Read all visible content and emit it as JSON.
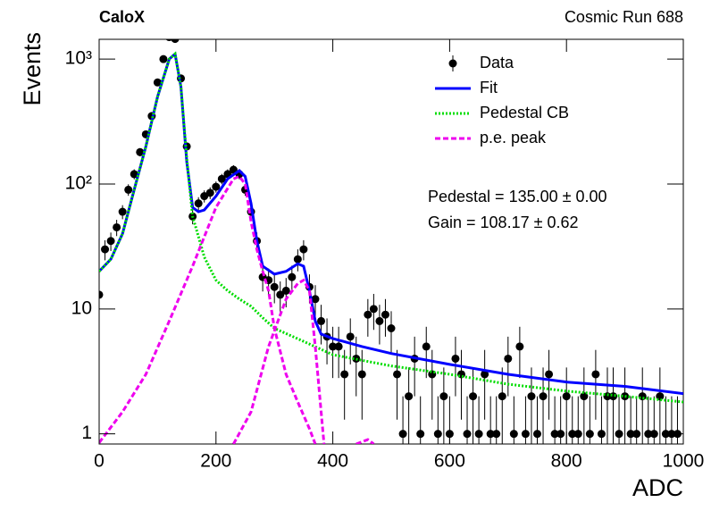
{
  "chart_data": {
    "type": "errorbar",
    "title": "CaloX",
    "subtitle": "Cosmic Run 688",
    "x_label": "ADC",
    "y_label": "Events",
    "annotations": [
      "Pedestal = 135.00 ± 0.00",
      "Gain = 108.17 ± 0.62"
    ],
    "log_y": true,
    "xlim": [
      0,
      1000
    ],
    "ylim": [
      0.83,
      1440
    ],
    "xticks": [
      0,
      200,
      400,
      600,
      800,
      1000
    ],
    "yticks": [
      1,
      10,
      {
        "value": 100,
        "label": "10²"
      },
      {
        "value": 1000,
        "label": "10³"
      }
    ],
    "legend": "upper right",
    "series": [
      {
        "name": "Data",
        "type": "errorbar",
        "color": "#000000",
        "x": [
          0,
          10,
          20,
          30,
          40,
          50,
          60,
          70,
          80,
          90,
          100,
          110,
          120,
          130,
          140,
          150,
          160,
          170,
          180,
          190,
          200,
          210,
          220,
          230,
          240,
          250,
          260,
          270,
          280,
          290,
          300,
          310,
          320,
          330,
          340,
          350,
          360,
          370,
          380,
          390,
          400,
          410,
          420,
          430,
          440,
          450,
          460,
          470,
          480,
          490,
          500,
          510,
          520,
          530,
          540,
          550,
          560,
          570,
          580,
          590,
          600,
          610,
          620,
          630,
          640,
          650,
          660,
          670,
          680,
          690,
          700,
          710,
          720,
          730,
          740,
          750,
          760,
          770,
          780,
          790,
          800,
          810,
          820,
          830,
          840,
          850,
          860,
          870,
          880,
          890,
          900,
          910,
          920,
          930,
          940,
          950,
          960,
          970,
          980,
          990
        ],
        "values": [
          13,
          30,
          35,
          45,
          60,
          90,
          120,
          180,
          250,
          350,
          650,
          1000,
          1500,
          1450,
          700,
          200,
          55,
          70,
          80,
          85,
          95,
          110,
          120,
          130,
          120,
          90,
          60,
          35,
          18,
          17,
          15,
          13,
          14,
          18,
          25,
          30,
          15,
          12,
          8,
          6,
          5,
          5,
          3,
          6,
          4,
          3,
          9,
          10,
          8,
          9,
          7,
          3,
          1,
          2,
          4,
          1,
          5,
          3,
          1,
          2,
          1,
          4,
          3,
          1,
          2,
          1,
          3,
          1,
          1,
          2,
          4,
          1,
          5,
          1,
          2,
          1,
          2,
          3,
          1,
          1,
          2,
          1,
          1,
          2,
          1,
          3,
          1,
          2,
          2,
          1,
          2,
          1,
          1,
          2,
          1,
          1,
          2,
          1,
          1,
          1
        ],
        "errors": [
          3.6,
          5.5,
          5.9,
          6.7,
          7.7,
          9.5,
          11.0,
          13.4,
          15.8,
          18.7,
          25.5,
          31.6,
          38.7,
          38.1,
          26.5,
          14.1,
          7.4,
          8.4,
          8.9,
          9.2,
          9.7,
          10.5,
          11.0,
          11.4,
          11.0,
          9.5,
          7.7,
          5.9,
          4.2,
          4.1,
          3.9,
          3.6,
          3.7,
          4.2,
          5.0,
          5.5,
          3.9,
          3.5,
          2.8,
          2.4,
          2.2,
          2.2,
          1.7,
          2.4,
          2.0,
          1.7,
          3.0,
          3.2,
          2.8,
          3.0,
          2.6,
          1.7,
          1.0,
          1.4,
          2.0,
          1.0,
          2.2,
          1.7,
          1.0,
          1.4,
          1.0,
          2.0,
          1.7,
          1.0,
          1.4,
          1.0,
          1.7,
          1.0,
          1.0,
          1.4,
          2.0,
          1.0,
          2.2,
          1.0,
          1.4,
          1.0,
          1.4,
          1.7,
          1.0,
          1.0,
          1.4,
          1.0,
          1.0,
          1.4,
          1.0,
          1.7,
          1.0,
          1.4,
          1.4,
          1.0,
          1.4,
          1.0,
          1.0,
          1.4,
          1.0,
          1.0,
          1.4,
          1.0,
          1.0,
          1.0
        ]
      },
      {
        "name": "Fit",
        "type": "line",
        "style": "solid",
        "color": "#0000ff",
        "x": [
          0,
          20,
          40,
          60,
          80,
          100,
          120,
          130,
          140,
          150,
          160,
          170,
          180,
          200,
          220,
          240,
          250,
          260,
          270,
          280,
          300,
          320,
          340,
          350,
          360,
          370,
          380,
          400,
          450,
          500,
          600,
          700,
          800,
          900,
          1000
        ],
        "values": [
          20,
          25,
          40,
          90,
          200,
          500,
          1000,
          1100,
          600,
          150,
          65,
          60,
          62,
          80,
          110,
          128,
          115,
          70,
          35,
          22,
          19,
          20,
          23,
          22,
          14,
          8,
          6.3,
          5.8,
          5,
          4.4,
          3.6,
          3.0,
          2.6,
          2.4,
          2.1
        ]
      },
      {
        "name": "Pedestal CB",
        "type": "line",
        "style": "dotted",
        "color": "#00dd00",
        "x": [
          0,
          20,
          40,
          60,
          80,
          100,
          120,
          130,
          140,
          150,
          160,
          170,
          180,
          200,
          220,
          240,
          260,
          280,
          300,
          350,
          400,
          500,
          600,
          700,
          800,
          900,
          1000
        ],
        "values": [
          20,
          25,
          40,
          90,
          200,
          500,
          1000,
          1100,
          600,
          160,
          55,
          38,
          26,
          17,
          14,
          12,
          10.5,
          8.5,
          7,
          5.5,
          4.3,
          3.5,
          3,
          2.5,
          2.2,
          2,
          1.8
        ]
      },
      {
        "name": "p.e. peak",
        "type": "line",
        "style": "dashed",
        "color": "#ee00ee",
        "x": [
          0,
          40,
          80,
          120,
          160,
          200,
          230,
          240,
          250,
          260,
          270,
          280,
          290,
          300,
          320,
          340,
          360,
          370,
          null,
          230,
          260,
          290,
          320,
          340,
          350,
          360,
          370,
          380,
          385,
          null,
          440,
          460,
          470
        ],
        "values": [
          0.85,
          1.5,
          3,
          8,
          22,
          65,
          110,
          115,
          100,
          50,
          30,
          20,
          14,
          7,
          3,
          1.8,
          1.1,
          0.83,
          null,
          0.83,
          1.5,
          5,
          12,
          16,
          17,
          14,
          5,
          1.5,
          0.83,
          null,
          0.83,
          0.9,
          0.83
        ]
      }
    ]
  }
}
